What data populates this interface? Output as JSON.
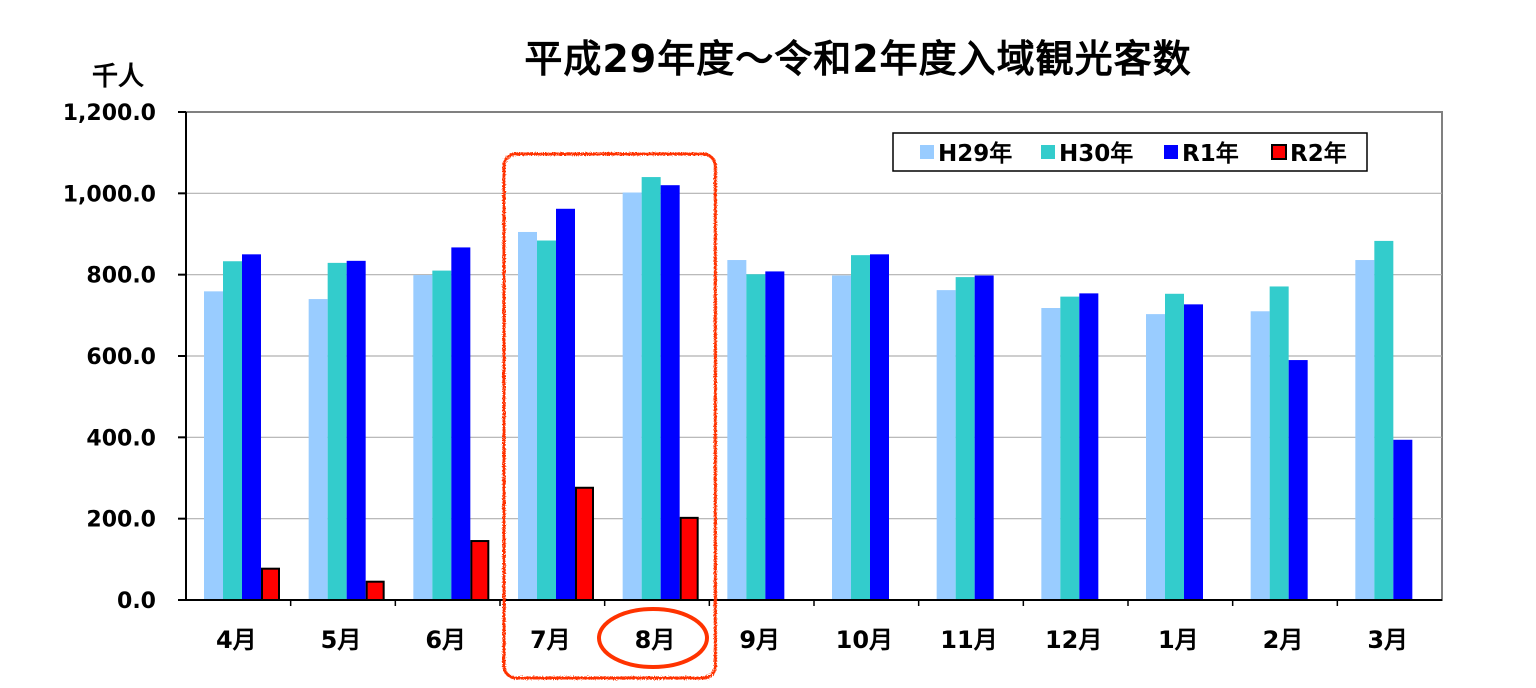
{
  "chart_data": {
    "type": "bar",
    "title": "平成29年度～令和2年度入域観光客数",
    "ylabel": "千人",
    "ylim": [
      0,
      1200
    ],
    "yticks": [
      "0.0",
      "200.0",
      "400.0",
      "600.0",
      "800.0",
      "1,000.0",
      "1,200.0"
    ],
    "grid": true,
    "legend_position": "top-right",
    "categories": [
      "4月",
      "5月",
      "6月",
      "7月",
      "8月",
      "9月",
      "10月",
      "11月",
      "12月",
      "1月",
      "2月",
      "3月"
    ],
    "series": [
      {
        "name": "H29年",
        "color": "#99CCFF",
        "values": [
          759,
          740,
          799,
          905,
          1002,
          836,
          798,
          762,
          718,
          703,
          710,
          836
        ]
      },
      {
        "name": "H30年",
        "color": "#33CCCC",
        "values": [
          833,
          829,
          810,
          884,
          1040,
          801,
          848,
          794,
          746,
          753,
          771,
          883
        ]
      },
      {
        "name": "R1年",
        "color": "#0000FF",
        "values": [
          850,
          834,
          867,
          962,
          1020,
          808,
          850,
          798,
          754,
          727,
          590,
          394
        ]
      },
      {
        "name": "R2年",
        "color": "#FF0000",
        "values": [
          77,
          45,
          145,
          276,
          202,
          null,
          null,
          null,
          null,
          null,
          null,
          null
        ]
      }
    ],
    "highlight": {
      "categories": [
        "7月",
        "8月"
      ],
      "circled_category": "8月",
      "color": "#FF3300"
    }
  }
}
